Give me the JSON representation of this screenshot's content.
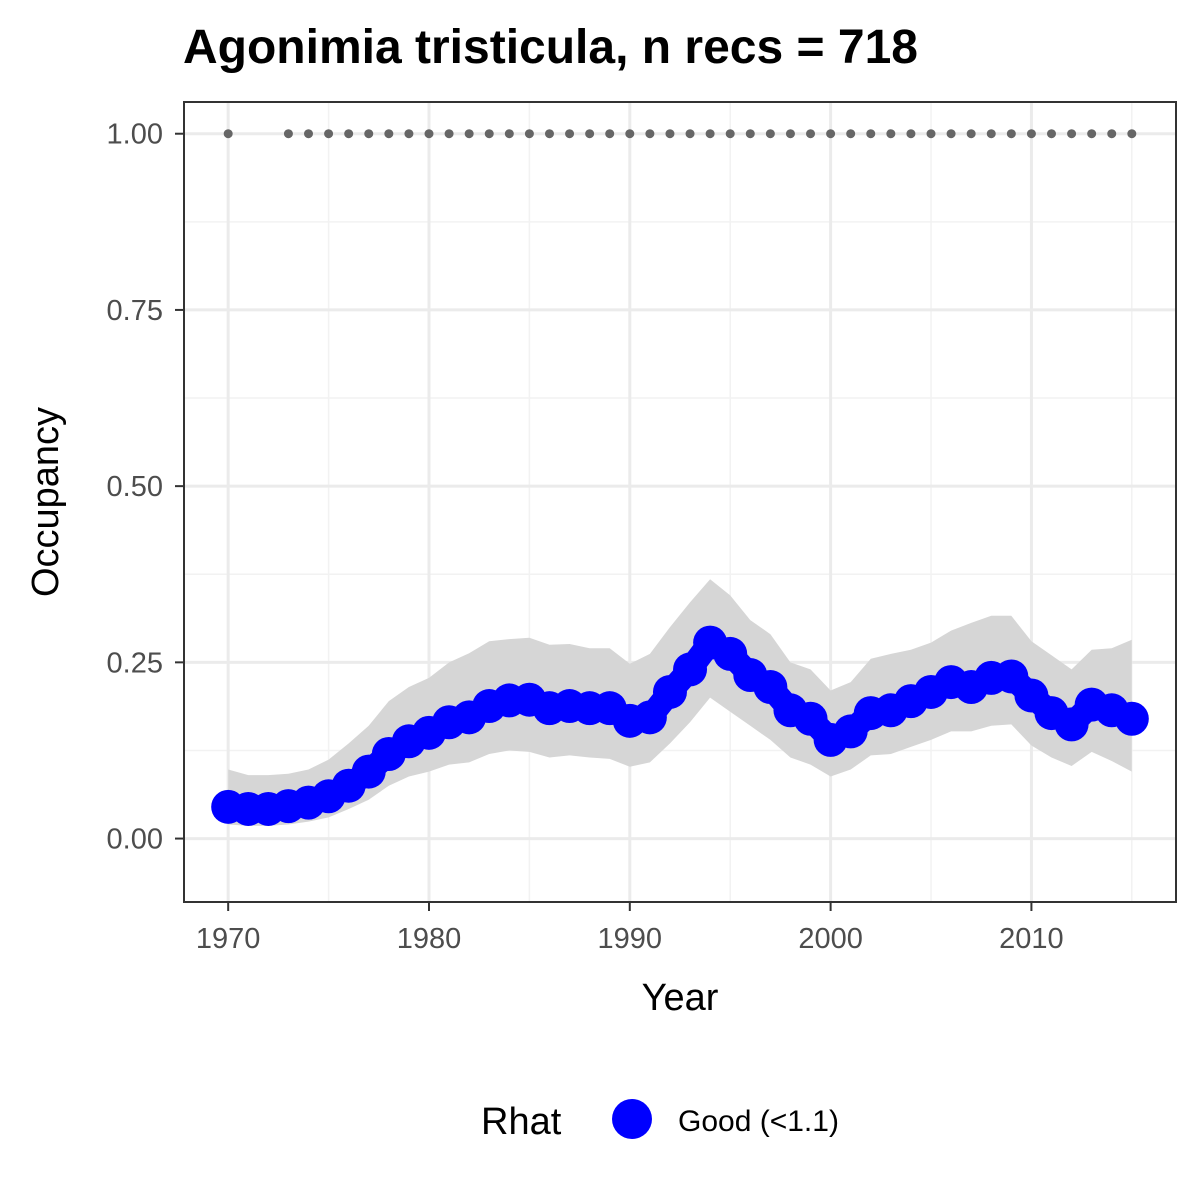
{
  "chart_data": {
    "type": "line",
    "title": "Agonimia tristicula, n recs = 718",
    "xlabel": "Year",
    "ylabel": "Occupancy",
    "xlim": [
      1967.8,
      2017.2
    ],
    "ylim": [
      -0.09,
      1.045
    ],
    "x_ticks": [
      1970,
      1980,
      1990,
      2000,
      2010
    ],
    "x_tick_labels": [
      "1970",
      "1980",
      "1990",
      "2000",
      "2010"
    ],
    "y_ticks": [
      0,
      0.25,
      0.5,
      0.75,
      1.0
    ],
    "y_tick_labels": [
      "0.00",
      "0.25",
      "0.50",
      "0.75",
      "1.00"
    ],
    "grid": true,
    "legend": {
      "position": "bottom",
      "title": "Rhat",
      "entries": [
        {
          "label": "Good (<1.1)",
          "color": "#0000ff"
        }
      ]
    },
    "colors": {
      "occupancy": "#0000ff",
      "ribbon": "#d6d6d6",
      "record_dots": "#666666"
    },
    "series": [
      {
        "name": "Good (<1.1)",
        "x": [
          1970,
          1971,
          1972,
          1973,
          1974,
          1975,
          1976,
          1977,
          1978,
          1979,
          1980,
          1981,
          1982,
          1983,
          1984,
          1985,
          1986,
          1987,
          1988,
          1989,
          1990,
          1991,
          1992,
          1993,
          1994,
          1995,
          1996,
          1997,
          1998,
          1999,
          2000,
          2001,
          2002,
          2003,
          2004,
          2005,
          2006,
          2007,
          2008,
          2009,
          2010,
          2011,
          2012,
          2013,
          2014,
          2015
        ],
        "y": [
          0.045,
          0.042,
          0.042,
          0.046,
          0.051,
          0.06,
          0.075,
          0.095,
          0.12,
          0.138,
          0.15,
          0.165,
          0.172,
          0.188,
          0.196,
          0.197,
          0.185,
          0.188,
          0.185,
          0.185,
          0.167,
          0.172,
          0.208,
          0.24,
          0.278,
          0.262,
          0.232,
          0.215,
          0.182,
          0.17,
          0.14,
          0.152,
          0.178,
          0.182,
          0.195,
          0.208,
          0.222,
          0.215,
          0.228,
          0.23,
          0.203,
          0.178,
          0.162,
          0.19,
          0.182,
          0.17
        ],
        "lower": [
          0.02,
          0.018,
          0.018,
          0.02,
          0.024,
          0.03,
          0.042,
          0.055,
          0.075,
          0.088,
          0.095,
          0.105,
          0.108,
          0.12,
          0.125,
          0.123,
          0.115,
          0.118,
          0.115,
          0.113,
          0.102,
          0.108,
          0.135,
          0.165,
          0.2,
          0.18,
          0.16,
          0.14,
          0.115,
          0.105,
          0.088,
          0.098,
          0.118,
          0.12,
          0.13,
          0.14,
          0.152,
          0.152,
          0.16,
          0.162,
          0.132,
          0.115,
          0.103,
          0.123,
          0.11,
          0.095
        ],
        "upper": [
          0.098,
          0.09,
          0.09,
          0.092,
          0.098,
          0.112,
          0.135,
          0.16,
          0.195,
          0.215,
          0.228,
          0.25,
          0.263,
          0.28,
          0.283,
          0.285,
          0.275,
          0.276,
          0.27,
          0.27,
          0.248,
          0.262,
          0.3,
          0.335,
          0.368,
          0.345,
          0.31,
          0.29,
          0.25,
          0.24,
          0.21,
          0.222,
          0.255,
          0.262,
          0.268,
          0.278,
          0.295,
          0.306,
          0.316,
          0.316,
          0.28,
          0.26,
          0.24,
          0.268,
          0.27,
          0.282
        ]
      },
      {
        "name": "",
        "x": [
          1970,
          1973,
          1974,
          1975,
          1976,
          1977,
          1978,
          1979,
          1980,
          1981,
          1982,
          1983,
          1984,
          1985,
          1986,
          1987,
          1988,
          1989,
          1990,
          1991,
          1992,
          1993,
          1994,
          1995,
          1996,
          1997,
          1998,
          1999,
          2000,
          2001,
          2002,
          2003,
          2004,
          2005,
          2006,
          2007,
          2008,
          2009,
          2010,
          2011,
          2012,
          2013,
          2014,
          2015
        ],
        "y": [
          1,
          1,
          1,
          1,
          1,
          1,
          1,
          1,
          1,
          1,
          1,
          1,
          1,
          1,
          1,
          1,
          1,
          1,
          1,
          1,
          1,
          1,
          1,
          1,
          1,
          1,
          1,
          1,
          1,
          1,
          1,
          1,
          1,
          1,
          1,
          1,
          1,
          1,
          1,
          1,
          1,
          1,
          1,
          1
        ]
      }
    ]
  }
}
